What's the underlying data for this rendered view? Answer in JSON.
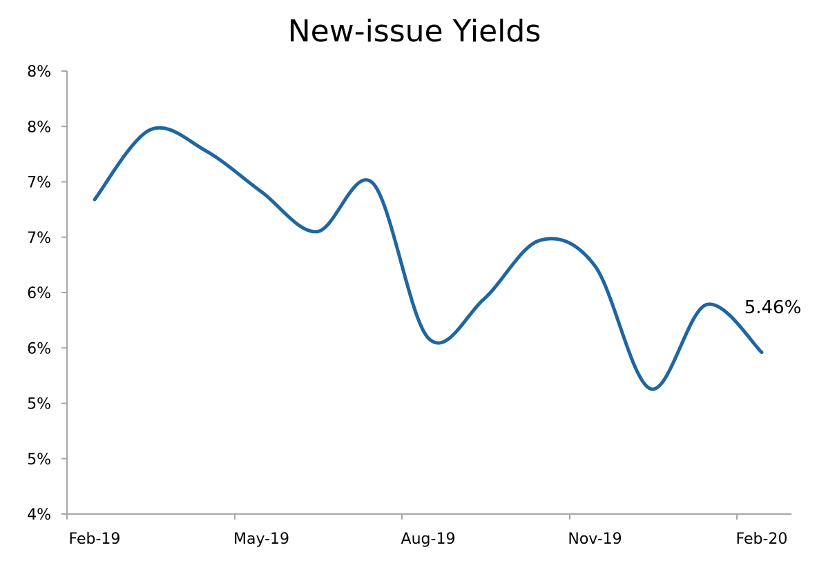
{
  "chart_data": {
    "type": "line",
    "title": "New-issue Yields",
    "xlabel": "",
    "ylabel": "",
    "x_tick_labels": [
      "Feb-19",
      "May-19",
      "Aug-19",
      "Nov-19",
      "Feb-20"
    ],
    "y_tick_labels": [
      "4%",
      "5%",
      "5%",
      "6%",
      "6%",
      "7%",
      "7%",
      "8%",
      "8%"
    ],
    "ylim": [
      4.0,
      8.0
    ],
    "y_ticks": [
      4.0,
      4.5,
      5.0,
      5.5,
      6.0,
      6.5,
      7.0,
      7.5,
      8.0
    ],
    "x": [
      "2019-02",
      "2019-03",
      "2019-04",
      "2019-05",
      "2019-06",
      "2019-07",
      "2019-08",
      "2019-09",
      "2019-10",
      "2019-11",
      "2019-12",
      "2020-01",
      "2020-02"
    ],
    "series": [
      {
        "values": [
          6.84,
          7.47,
          7.28,
          6.91,
          6.55,
          6.99,
          5.59,
          5.94,
          6.47,
          6.24,
          5.13,
          5.89,
          5.46
        ]
      }
    ],
    "line_color": "#1f66a1",
    "grid": false,
    "legend": "none",
    "annotation": {
      "text": "5.46%",
      "series_index": 0,
      "point_index": 12
    }
  }
}
